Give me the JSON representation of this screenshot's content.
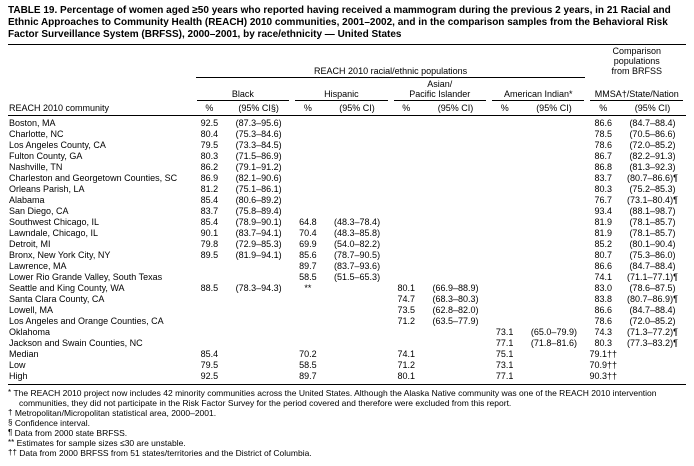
{
  "title": "TABLE 19. Percentage of women aged ≥50 years who reported having received a mammogram during the previous 2 years, in 21 Racial and Ethnic Approaches to Community Health (REACH) 2010 communities, 2001–2002, and in the comparison samples from the Behavioral Risk Factor Surveillance System (BRFSS), 2000–2001, by race/ethnicity — United States",
  "table": {
    "span_headers": {
      "reach": "REACH 2010 racial/ethnic populations",
      "comparison": "Comparison\npopulations\nfrom BRFSS"
    },
    "community_header": "REACH 2010 community",
    "groups": [
      {
        "label": "Black",
        "pct_header": "%",
        "ci_header": "(95% CI§)"
      },
      {
        "label": "Hispanic",
        "pct_header": "%",
        "ci_header": "(95% CI)"
      },
      {
        "label": "Asian/\nPacific Islander",
        "pct_header": "%",
        "ci_header": "(95% CI)"
      },
      {
        "label": "American Indian*",
        "pct_header": "%",
        "ci_header": "(95% CI)"
      },
      {
        "label": "MMSA†/State/Nation",
        "pct_header": "%",
        "ci_header": "(95% CI)"
      }
    ],
    "rows": [
      {
        "community": "Boston, MA",
        "cells": [
          "92.5",
          "(87.3–95.6)",
          "",
          "",
          "",
          "",
          "",
          "",
          "86.6",
          "(84.7–88.4)"
        ]
      },
      {
        "community": "Charlotte, NC",
        "cells": [
          "80.4",
          "(75.3–84.6)",
          "",
          "",
          "",
          "",
          "",
          "",
          "78.5",
          "(70.5–86.6)"
        ]
      },
      {
        "community": "Los Angeles County, CA",
        "cells": [
          "79.5",
          "(73.3–84.5)",
          "",
          "",
          "",
          "",
          "",
          "",
          "78.6",
          "(72.0–85.2)"
        ]
      },
      {
        "community": "Fulton County, GA",
        "cells": [
          "80.3",
          "(71.5–86.9)",
          "",
          "",
          "",
          "",
          "",
          "",
          "86.7",
          "(82.2–91.3)"
        ]
      },
      {
        "community": "Nashville, TN",
        "cells": [
          "86.2",
          "(79.1–91.2)",
          "",
          "",
          "",
          "",
          "",
          "",
          "86.8",
          "(81.3–92.3)"
        ]
      },
      {
        "community": "Charleston and Georgetown Counties, SC",
        "cells": [
          "86.9",
          "(82.1–90.6)",
          "",
          "",
          "",
          "",
          "",
          "",
          "83.7",
          "(80.7–86.6)¶"
        ]
      },
      {
        "community": "Orleans Parish, LA",
        "cells": [
          "81.2",
          "(75.1–86.1)",
          "",
          "",
          "",
          "",
          "",
          "",
          "80.3",
          "(75.2–85.3)"
        ]
      },
      {
        "community": "Alabama",
        "cells": [
          "85.4",
          "(80.6–89.2)",
          "",
          "",
          "",
          "",
          "",
          "",
          "76.7",
          "(73.1–80.4)¶"
        ]
      },
      {
        "community": "San Diego, CA",
        "cells": [
          "83.7",
          "(75.8–89.4)",
          "",
          "",
          "",
          "",
          "",
          "",
          "93.4",
          "(88.1–98.7)"
        ]
      },
      {
        "community": "Southwest Chicago, IL",
        "cells": [
          "85.4",
          "(78.9–90.1)",
          "64.8",
          "(48.3–78.4)",
          "",
          "",
          "",
          "",
          "81.9",
          "(78.1–85.7)"
        ]
      },
      {
        "community": "Lawndale, Chicago, IL",
        "cells": [
          "90.1",
          "(83.7–94.1)",
          "70.4",
          "(48.3–85.8)",
          "",
          "",
          "",
          "",
          "81.9",
          "(78.1–85.7)"
        ]
      },
      {
        "community": "Detroit, MI",
        "cells": [
          "79.8",
          "(72.9–85.3)",
          "69.9",
          "(54.0–82.2)",
          "",
          "",
          "",
          "",
          "85.2",
          "(80.1–90.4)"
        ]
      },
      {
        "community": "Bronx, New York City, NY",
        "cells": [
          "89.5",
          "(81.9–94.1)",
          "85.6",
          "(78.7–90.5)",
          "",
          "",
          "",
          "",
          "80.7",
          "(75.3–86.0)"
        ]
      },
      {
        "community": "Lawrence, MA",
        "cells": [
          "",
          "",
          "89.7",
          "(83.7–93.6)",
          "",
          "",
          "",
          "",
          "86.6",
          "(84.7–88.4)"
        ]
      },
      {
        "community": "Lower Rio Grande Valley, South Texas",
        "cells": [
          "",
          "",
          "58.5",
          "(51.5–65.3)",
          "",
          "",
          "",
          "",
          "74.1",
          "(71.1–77.1)¶"
        ]
      },
      {
        "community": "Seattle and King County, WA",
        "cells": [
          "88.5",
          "(78.3–94.3)",
          "**",
          "",
          "80.1",
          "(66.9–88.9)",
          "",
          "",
          "83.0",
          "(78.6–87.5)"
        ]
      },
      {
        "community": "Santa Clara County, CA",
        "cells": [
          "",
          "",
          "",
          "",
          "74.7",
          "(68.3–80.3)",
          "",
          "",
          "83.8",
          "(80.7–86.9)¶"
        ]
      },
      {
        "community": "Lowell, MA",
        "cells": [
          "",
          "",
          "",
          "",
          "73.5",
          "(62.8–82.0)",
          "",
          "",
          "86.6",
          "(84.7–88.4)"
        ]
      },
      {
        "community": "Los Angeles and Orange Counties, CA",
        "cells": [
          "",
          "",
          "",
          "",
          "71.2",
          "(63.5–77.9)",
          "",
          "",
          "78.6",
          "(72.0–85.2)"
        ]
      },
      {
        "community": "Oklahoma",
        "cells": [
          "",
          "",
          "",
          "",
          "",
          "",
          "73.1",
          "(65.0–79.9)",
          "74.3",
          "(71.3–77.2)¶"
        ]
      },
      {
        "community": "Jackson and Swain Counties, NC",
        "cells": [
          "",
          "",
          "",
          "",
          "",
          "",
          "77.1",
          "(71.8–81.6)",
          "80.3",
          "(77.3–83.2)¶"
        ]
      },
      {
        "community": "Median",
        "cells": [
          "85.4",
          "",
          "70.2",
          "",
          "74.1",
          "",
          "75.1",
          "",
          "79.1††",
          ""
        ]
      },
      {
        "community": "Low",
        "cells": [
          "79.5",
          "",
          "58.5",
          "",
          "71.2",
          "",
          "73.1",
          "",
          "70.9††",
          ""
        ]
      },
      {
        "community": "High",
        "cells": [
          "92.5",
          "",
          "89.7",
          "",
          "80.1",
          "",
          "77.1",
          "",
          "90.3††",
          ""
        ]
      }
    ]
  },
  "footnotes": [
    {
      "symbol": "*",
      "text": "The REACH 2010 project now includes 42 minority communities across the United States. Although the Alaska Native community was one of the REACH 2010 intervention communities, they did not participate in the Risk Factor Survey for the period covered and therefore were excluded from this report."
    },
    {
      "symbol": "†",
      "text": "Metropolitan/Micropolitan statistical area, 2000–2001."
    },
    {
      "symbol": "§",
      "text": "Confidence interval."
    },
    {
      "symbol": "¶",
      "text": "Data from 2000 state BRFSS."
    },
    {
      "symbol": "**",
      "text": "Estimates for sample sizes ≤30 are unstable."
    },
    {
      "symbol": "††",
      "text": "Data from 2000 BRFSS from 51 states/territories and the District of Columbia."
    }
  ]
}
